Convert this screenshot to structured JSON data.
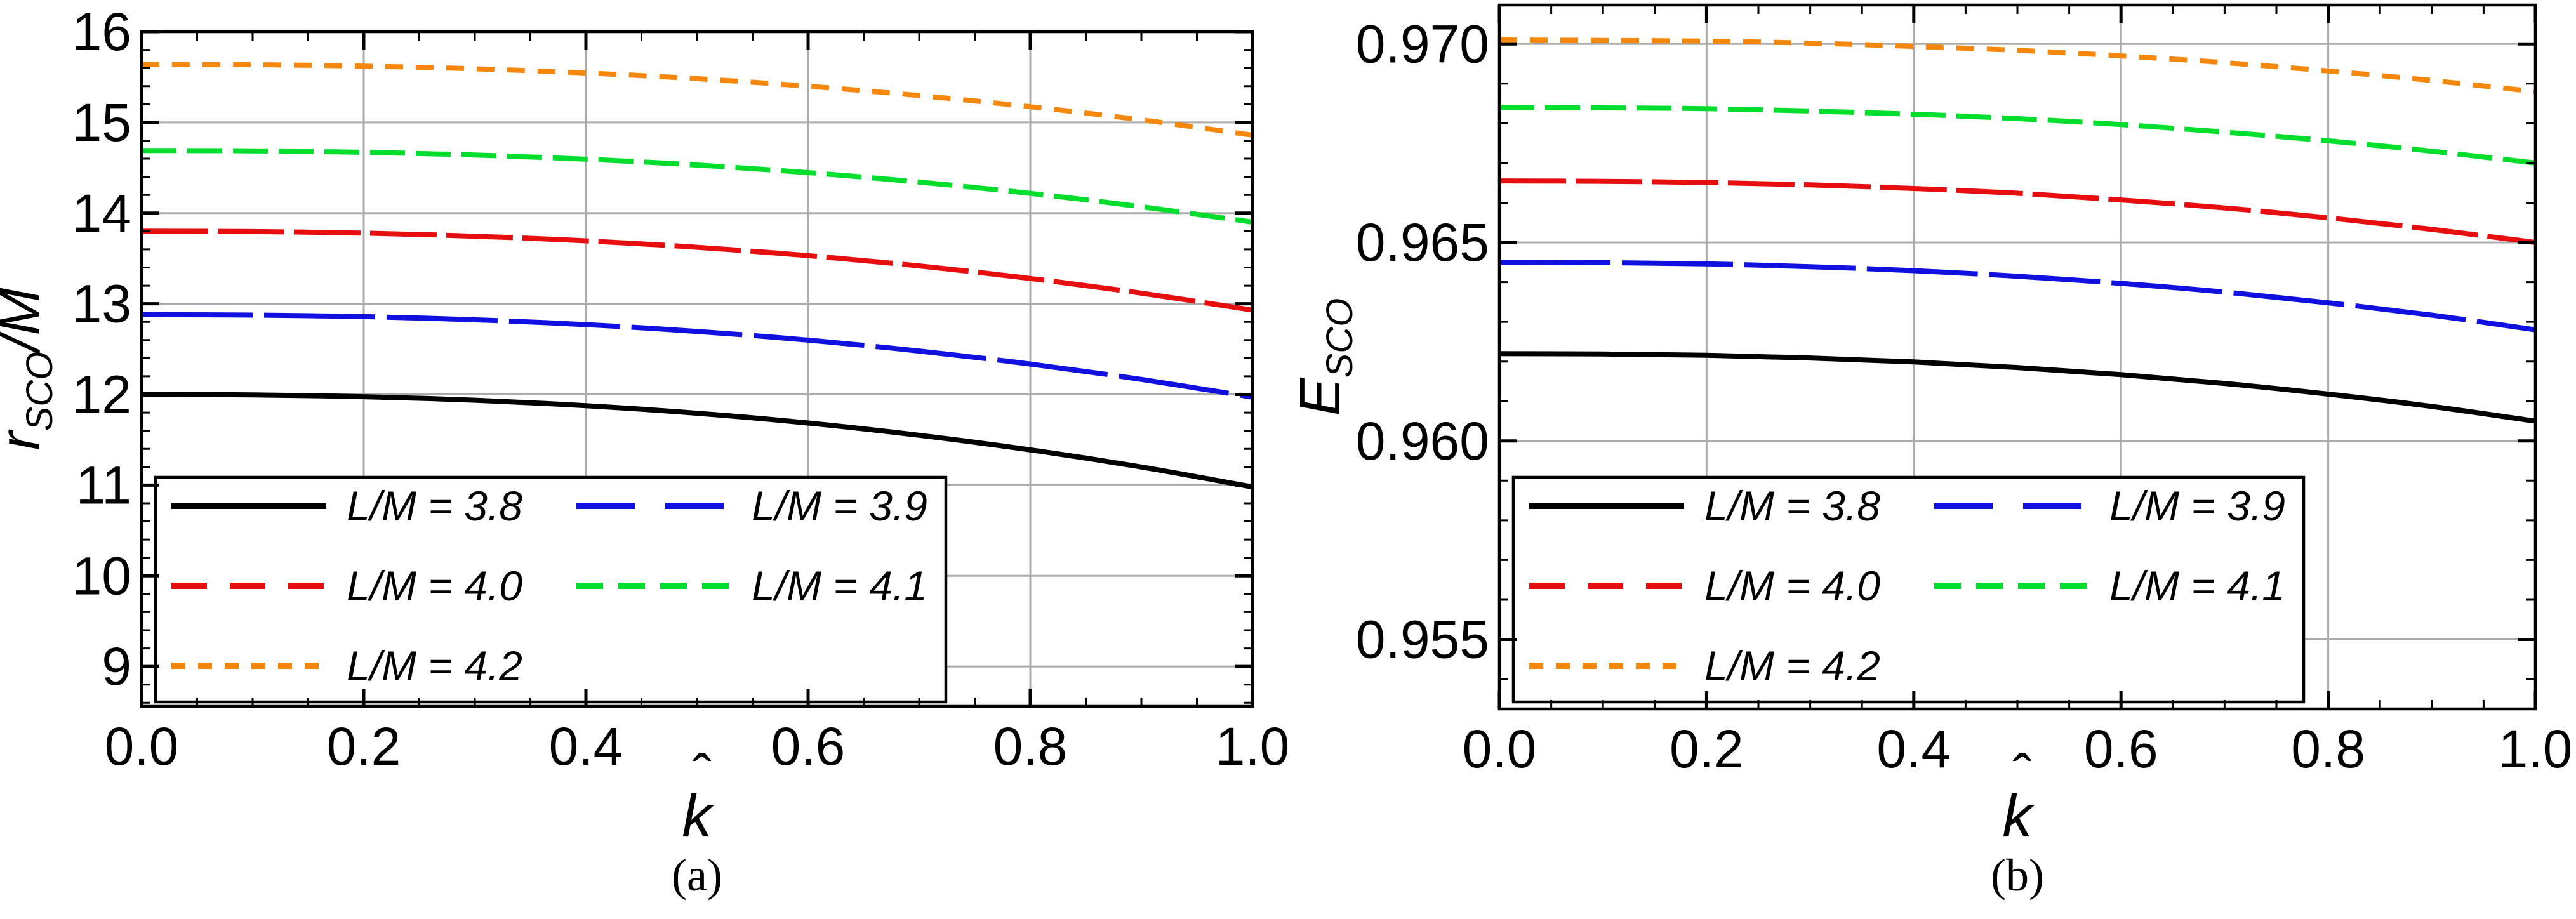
{
  "figure": {
    "captions": {
      "left": "(a)",
      "right": "(b)"
    },
    "colors": {
      "background": "#ffffff",
      "frame": "#000000",
      "grid": "#ababab",
      "text": "#000000",
      "legend_border": "#000000",
      "legend_fill": "#ffffff"
    }
  },
  "chart_data": [
    {
      "type": "line",
      "title": "",
      "xlabel": {
        "base": "k",
        "accent": "ˆ"
      },
      "ylabel": {
        "base": "r",
        "sub": "SCO",
        "suffix": "/M"
      },
      "xlim": [
        0.0,
        1.0
      ],
      "ylim": [
        8.56,
        16.0
      ],
      "grid": true,
      "legend_position": "lower-left",
      "x": [
        0.0,
        0.1,
        0.2,
        0.3,
        0.4,
        0.5,
        0.6,
        0.7,
        0.8,
        0.9,
        1.0
      ],
      "xticks": {
        "major": [
          0.0,
          0.2,
          0.4,
          0.6,
          0.8,
          1.0
        ],
        "labels": [
          "0.0",
          "0.2",
          "0.4",
          "0.6",
          "0.8",
          "1.0"
        ],
        "minor_step": 0.05
      },
      "yticks": {
        "major": [
          9,
          10,
          11,
          12,
          13,
          14,
          15,
          16
        ],
        "labels": [
          "9",
          "10",
          "11",
          "12",
          "13",
          "14",
          "15",
          "16"
        ],
        "minor_step": 0.2
      },
      "series": [
        {
          "name": "L/M = 3.8",
          "color": "#000000",
          "dash": [],
          "legend_dash": [],
          "values": [
            12.0,
            11.995,
            11.975,
            11.936,
            11.876,
            11.793,
            11.685,
            11.55,
            11.389,
            11.2,
            10.98
          ]
        },
        {
          "name": "L/M = 3.9",
          "color": "#1010E0",
          "dash": [
            175,
            18
          ],
          "legend_dash": [
            92,
            48
          ],
          "values": [
            12.88,
            12.875,
            12.858,
            12.823,
            12.77,
            12.695,
            12.599,
            12.479,
            12.335,
            12.166,
            11.97
          ]
        },
        {
          "name": "L/M = 4.0",
          "color": "#E60E0E",
          "dash": [
            105,
            15
          ],
          "legend_dash": [
            56,
            36
          ],
          "values": [
            13.8,
            13.796,
            13.779,
            13.745,
            13.694,
            13.623,
            13.531,
            13.417,
            13.279,
            13.117,
            12.93
          ]
        },
        {
          "name": "L/M = 4.1",
          "color": "#00DE2D",
          "dash": [
            55,
            17
          ],
          "legend_dash": [
            42,
            24
          ],
          "values": [
            14.69,
            14.686,
            14.67,
            14.64,
            14.594,
            14.53,
            14.446,
            14.342,
            14.217,
            14.07,
            13.9
          ]
        },
        {
          "name": "L/M = 4.2",
          "color": "#F6870D",
          "dash": [
            28,
            20
          ],
          "legend_dash": [
            22,
            20
          ],
          "values": [
            15.64,
            15.636,
            15.621,
            15.591,
            15.545,
            15.482,
            15.399,
            15.296,
            15.173,
            15.028,
            14.86
          ]
        }
      ]
    },
    {
      "type": "line",
      "title": "",
      "xlabel": {
        "base": "k",
        "accent": "ˆ"
      },
      "ylabel": {
        "base": "E",
        "sub": "SCO",
        "suffix": ""
      },
      "xlim": [
        0.0,
        1.0
      ],
      "ylim": [
        0.95325,
        0.97098
      ],
      "grid": true,
      "legend_position": "lower-left",
      "x": [
        0.0,
        0.1,
        0.2,
        0.3,
        0.4,
        0.5,
        0.6,
        0.7,
        0.8,
        0.9,
        1.0
      ],
      "xticks": {
        "major": [
          0.0,
          0.2,
          0.4,
          0.6,
          0.8,
          1.0
        ],
        "labels": [
          "0.0",
          "0.2",
          "0.4",
          "0.6",
          "0.8",
          "1.0"
        ],
        "minor_step": 0.05
      },
      "yticks": {
        "major": [
          0.955,
          0.96,
          0.965,
          0.97
        ],
        "labels": [
          "0.955",
          "0.960",
          "0.965",
          "0.970"
        ],
        "minor_step": 0.001
      },
      "series": [
        {
          "name": "L/M = 3.8",
          "color": "#000000",
          "dash": [],
          "legend_dash": [],
          "values": [
            0.9622,
            0.96219,
            0.96216,
            0.96209,
            0.96199,
            0.96185,
            0.96167,
            0.96145,
            0.96118,
            0.96087,
            0.9605
          ]
        },
        {
          "name": "L/M = 3.9",
          "color": "#1010E0",
          "dash": [
            175,
            18
          ],
          "legend_dash": [
            92,
            48
          ],
          "values": [
            0.9645,
            0.96449,
            0.96446,
            0.96439,
            0.96429,
            0.96415,
            0.96397,
            0.96375,
            0.96348,
            0.96317,
            0.9628
          ]
        },
        {
          "name": "L/M = 4.0",
          "color": "#E60E0E",
          "dash": [
            105,
            15
          ],
          "legend_dash": [
            56,
            36
          ],
          "values": [
            0.96655,
            0.96654,
            0.96651,
            0.96645,
            0.96636,
            0.96624,
            0.96607,
            0.96587,
            0.96562,
            0.96533,
            0.965
          ]
        },
        {
          "name": "L/M = 4.1",
          "color": "#00DE2D",
          "dash": [
            55,
            17
          ],
          "legend_dash": [
            42,
            24
          ],
          "values": [
            0.9684,
            0.96839,
            0.96837,
            0.96831,
            0.96823,
            0.96812,
            0.96797,
            0.96778,
            0.96756,
            0.9673,
            0.967
          ]
        },
        {
          "name": "L/M = 4.2",
          "color": "#F6870D",
          "dash": [
            28,
            20
          ],
          "legend_dash": [
            22,
            20
          ],
          "values": [
            0.9701,
            0.97009,
            0.97007,
            0.97002,
            0.96994,
            0.96984,
            0.9697,
            0.96953,
            0.96932,
            0.96908,
            0.9688
          ]
        }
      ]
    }
  ]
}
